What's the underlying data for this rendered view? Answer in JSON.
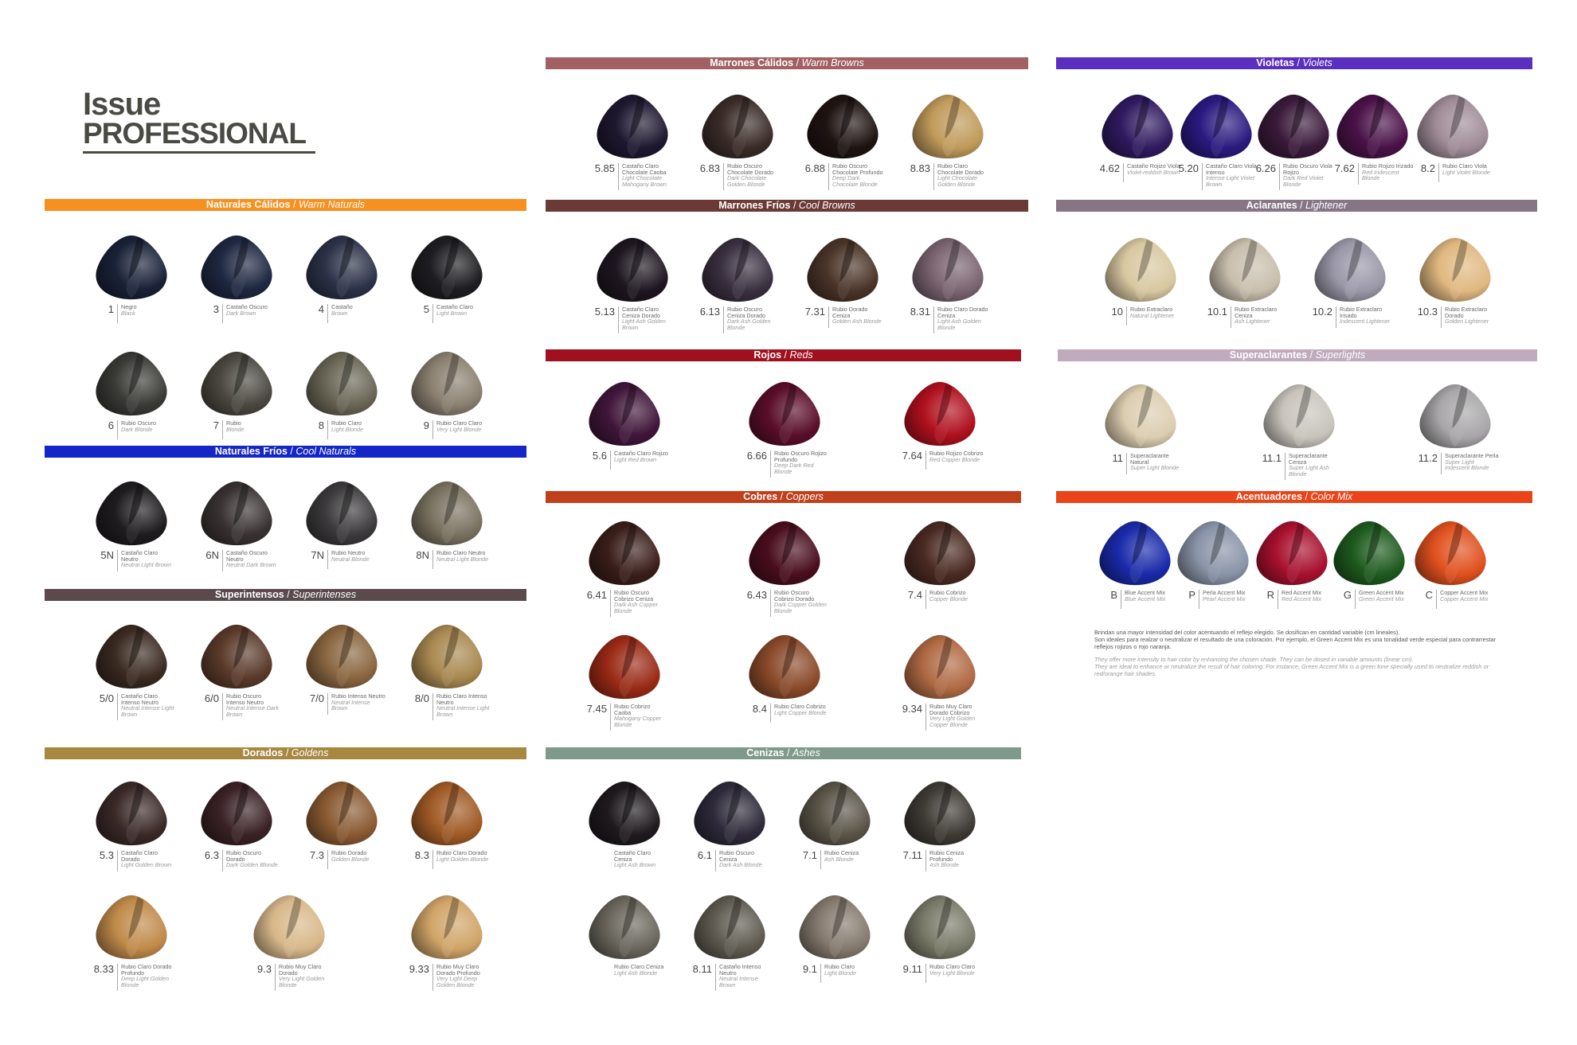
{
  "brand": {
    "line1": "ISSUe",
    "line2": "PROFESSIONAL"
  },
  "groups": [
    {
      "title_es": "Naturales Cálidos",
      "title_en": "Warm Naturals",
      "color": "#f7901e",
      "swatches": [
        {
          "code": "1",
          "es": "Negro",
          "en": "Black",
          "color": "#1a2238"
        },
        {
          "code": "3",
          "es": "Castaño Oscuro",
          "en": "Dark Brown",
          "color": "#1f2842"
        },
        {
          "code": "4",
          "es": "Castaño",
          "en": "Brown",
          "color": "#2c3248"
        },
        {
          "code": "5",
          "es": "Castaño Claro",
          "en": "Light Brown",
          "color": "#1e1e22"
        },
        {
          "code": "6",
          "es": "Rubio Oscuro",
          "en": "Dark Blonde",
          "color": "#3a3a36"
        },
        {
          "code": "7",
          "es": "Rubio",
          "en": "Blonde",
          "color": "#4a4840"
        },
        {
          "code": "8",
          "es": "Rubio Claro",
          "en": "Light Blonde",
          "color": "#6a6656"
        },
        {
          "code": "9",
          "es": "Rubio Claro Claro",
          "en": "Very Light Blonde",
          "color": "#8a8070"
        }
      ]
    },
    {
      "title_es": "Naturales Fríos",
      "title_en": "Cool Naturals",
      "color": "#1426c8",
      "swatches": [
        {
          "code": "5N",
          "es": "Castaño Claro Neutro",
          "en": "Neutral Light Brown",
          "color": "#1e1c1e"
        },
        {
          "code": "6N",
          "es": "Castaño Oscuro Neutro",
          "en": "Neutral Dark Brown",
          "color": "#3a3232"
        },
        {
          "code": "7N",
          "es": "Rubio Neutro",
          "en": "Neutral Blonde",
          "color": "#3c3a3c"
        },
        {
          "code": "8N",
          "es": "Rubio Claro Neutro",
          "en": "Neutral Light Blonde",
          "color": "#7a7260"
        }
      ]
    },
    {
      "title_es": "Superintensos",
      "title_en": "Superintenses",
      "color": "#5a4a4e",
      "swatches": [
        {
          "code": "5/0",
          "es": "Castaño Claro Intenso Neutro",
          "en": "Neutral Intense Light Brown",
          "color": "#3a2a22"
        },
        {
          "code": "6/0",
          "es": "Rubio Oscuro Intenso Neutro",
          "en": "Neutral Intense Dark Brown",
          "color": "#5a3a2a"
        },
        {
          "code": "7/0",
          "es": "Rubio Intenso Neutro",
          "en": "Neutral Intense Brown",
          "color": "#8a6640"
        },
        {
          "code": "8/0",
          "es": "Rubio Claro Intenso Neutro",
          "en": "Neutral Intense Light Brown",
          "color": "#a88850"
        }
      ]
    },
    {
      "title_es": "Dorados",
      "title_en": "Goldens",
      "color": "#a8873f",
      "swatches": [
        {
          "code": "5.3",
          "es": "Castaño Claro Dorado",
          "en": "Light Golden Brown",
          "color": "#3a2a28"
        },
        {
          "code": "6.3",
          "es": "Rubio Oscuro Dorado",
          "en": "Dark Golden Blonde",
          "color": "#3a2226"
        },
        {
          "code": "7.3",
          "es": "Rubio Dorado",
          "en": "Golden Blonde",
          "color": "#8a5a32"
        },
        {
          "code": "8.3",
          "es": "Rubio Claro Dorado",
          "en": "Light Golden Blonde",
          "color": "#a05a26"
        },
        {
          "code": "8.33",
          "es": "Rubio Claro Dorado Profundo",
          "en": "Deep Light Golden Blonde",
          "color": "#c08a4a"
        },
        {
          "code": "9.3",
          "es": "Rubio Muy Claro Dorado",
          "en": "Very Light Golden Blonde",
          "color": "#d8b88a"
        },
        {
          "code": "9.33",
          "es": "Rubio Muy Claro Dorado Profundo",
          "en": "Very Light Deep Golden Blonde",
          "color": "#d0a468"
        }
      ]
    },
    {
      "title_es": "Marrones Cálidos",
      "title_en": "Warm Browns",
      "color": "#a36062",
      "swatches": [
        {
          "code": "5.85",
          "es": "Castaño Claro Chocolate Caoba",
          "en": "Light Chocolate Mahogany Brown",
          "color": "#1e1830"
        },
        {
          "code": "6.83",
          "es": "Rubio Oscuro Chocolate Dorado",
          "en": "Dark Chocolate Golden Blonde",
          "color": "#3a2c28"
        },
        {
          "code": "6.88",
          "es": "Rubio Oscuro Chocolate Profundo",
          "en": "Deep Dark Chocolate Blonde",
          "color": "#1e1412"
        },
        {
          "code": "8.83",
          "es": "Rubio Claro Chocolate Dorado",
          "en": "Light Chocolate Golden Blonde",
          "color": "#c09a5a"
        }
      ]
    },
    {
      "title_es": "Marrones Fríos",
      "title_en": "Cool Browns",
      "color": "#6b3a37",
      "swatches": [
        {
          "code": "5.13",
          "es": "Castaño Claro Ceniza Dorado",
          "en": "Light Ash Golden Brown",
          "color": "#1e1620"
        },
        {
          "code": "6.13",
          "es": "Rubio Oscuro Ceniza Dorado",
          "en": "Dark Ash Golden Blonde",
          "color": "#3a3040"
        },
        {
          "code": "7.31",
          "es": "Rubio Dorado Ceniza",
          "en": "Golden Ash Blonde",
          "color": "#4a3428"
        },
        {
          "code": "8.31",
          "es": "Rubio Claro Dorado Ceniza",
          "en": "Light Ash Golden Blonde",
          "color": "#7a6470"
        }
      ]
    },
    {
      "title_es": "Rojos",
      "title_en": "Reds",
      "color": "#a0101e",
      "swatches": [
        {
          "code": "5.6",
          "es": "Castaño Claro Rojizo",
          "en": "Light Red Brown",
          "color": "#40163a"
        },
        {
          "code": "6.66",
          "es": "Rubio Oscuro Rojizo Profundo",
          "en": "Deep Dark Red Blonde",
          "color": "#5a0e2a"
        },
        {
          "code": "7.64",
          "es": "Rubio Rojizo Cobrizo",
          "en": "Red Copper Blonde",
          "color": "#b0101e"
        }
      ]
    },
    {
      "title_es": "Cobres",
      "title_en": "Coppers",
      "color": "#c0401c",
      "swatches": [
        {
          "code": "6.41",
          "es": "Rubio Oscuro Cobrizo Ceniza",
          "en": "Dark Ash Copper Blonde",
          "color": "#3a1e1a"
        },
        {
          "code": "6.43",
          "es": "Rubio Oscuro Cobrizo Dorado",
          "en": "Dark Copper Golden Blonde",
          "color": "#4a0e1e"
        },
        {
          "code": "7.4",
          "es": "Rubio Cobrizo",
          "en": "Copper Blonde",
          "color": "#4a2a22"
        },
        {
          "code": "7.45",
          "es": "Rubio Cobrizo Caoba",
          "en": "Mahogany Copper Blonde",
          "color": "#9a2a16"
        },
        {
          "code": "8.4",
          "es": "Rubio Claro Cobrizo",
          "en": "Light Copper Blonde",
          "color": "#8a4a2a"
        },
        {
          "code": "9.34",
          "es": "Rubio Muy Claro Dorado Cobrizo",
          "en": "Very Light Golden Copper Blonde",
          "color": "#b06a44"
        }
      ]
    },
    {
      "title_es": "Cenizas",
      "title_en": "Ashes",
      "color": "#7f9a8c",
      "swatches": [
        {
          "code": "",
          "es": "Castaño Claro Ceniza",
          "en": "Light Ash Brown",
          "color": "#1e1a1e"
        },
        {
          "code": "6.1",
          "es": "Rubio Oscuro Ceniza",
          "en": "Dark Ash Blonde",
          "color": "#2e2a3a"
        },
        {
          "code": "7.1",
          "es": "Rubio Ceniza",
          "en": "Ash Blonde",
          "color": "#5a5448"
        },
        {
          "code": "7.11",
          "es": "Rubio Ceniza Profundo",
          "en": "Ash Blonde",
          "color": "#3e3a34"
        },
        {
          "code": "",
          "es": "Rubio Claro Ceniza",
          "en": "Light Ash Blonde",
          "color": "#6a665c"
        },
        {
          "code": "8.11",
          "es": "Castaño Intenso Neutro",
          "en": "Neutral Intense Brown",
          "color": "#5e5a50"
        },
        {
          "code": "9.1",
          "es": "Rubio Claro",
          "en": "Light Blonde",
          "color": "#857a6e"
        },
        {
          "code": "9.11",
          "es": "Rubio Claro Claro",
          "en": "Very Light Blonde",
          "color": "#7a7a6a"
        }
      ]
    },
    {
      "title_es": "Violetas",
      "title_en": "Violets",
      "color": "#5a2fc0",
      "swatches": [
        {
          "code": "4.62",
          "es": "Castaño Rojizo Viola",
          "en": "Violet-reddish Brown",
          "color": "#301a60"
        },
        {
          "code": "5.20",
          "es": "Castaño Claro Viola Intenso",
          "en": "Intense Light Violet Brown",
          "color": "#2a1a80"
        },
        {
          "code": "6.26",
          "es": "Rubio Oscuro Viola Rojizo",
          "en": "Dark Red Violet Blonde",
          "color": "#3a1a3a"
        },
        {
          "code": "7.62",
          "es": "Rubio Rojizo Irizado",
          "en": "Red Indescent Blonde",
          "color": "#4a1248"
        },
        {
          "code": "8.2",
          "es": "Rubio Claro Viola",
          "en": "Light Violet Blonde",
          "color": "#a08c98"
        }
      ]
    },
    {
      "title_es": "Aclarantes",
      "title_en": "Lightener",
      "color": "#857585",
      "swatches": [
        {
          "code": "10",
          "es": "Rubio Extraclaro",
          "en": "Natural Lightener",
          "color": "#d8c8a0"
        },
        {
          "code": "10.1",
          "es": "Rubio Extraclaro Ceniza",
          "en": "Ash Lightener",
          "color": "#c8beac"
        },
        {
          "code": "10.2",
          "es": "Rubio Extraclaro Irisado",
          "en": "Indescent Lightener",
          "color": "#9a98a8"
        },
        {
          "code": "10.3",
          "es": "Rubio Extraclaro Dorado",
          "en": "Golden Lightener",
          "color": "#e0b880"
        }
      ]
    },
    {
      "title_es": "Superaclarantes",
      "title_en": "Superlights",
      "color": "#bfaabe",
      "swatches": [
        {
          "code": "11",
          "es": "Superaclarante Natural",
          "en": "Super Light Blonde",
          "color": "#dccdb0"
        },
        {
          "code": "11.1",
          "es": "Superaclarante Ceniza",
          "en": "Super Light Ash Blonde",
          "color": "#c8c4bc"
        },
        {
          "code": "11.2",
          "es": "Superaclarante Perla",
          "en": "Super Light Indescent Blonde",
          "color": "#a8a6a8"
        }
      ]
    },
    {
      "title_es": "Acentuadores",
      "title_en": "Color Mix",
      "color": "#ea4418",
      "swatches": [
        {
          "code": "B",
          "es": "Blue Accent Mix",
          "en": "Blue Accent Mix",
          "color": "#1a2aaa"
        },
        {
          "code": "P",
          "es": "Perla Accent Mix",
          "en": "Pearl Accent Mix",
          "color": "#8a94a8"
        },
        {
          "code": "R",
          "es": "Red Accent Mix",
          "en": "Red Accent Mix",
          "color": "#a8102e"
        },
        {
          "code": "G",
          "es": "Green Accent Mix",
          "en": "Green Accent Mix",
          "color": "#1e5a1e"
        },
        {
          "code": "C",
          "es": "Copper Accent Mix",
          "en": "Copper Accent Mix",
          "color": "#e0501e"
        }
      ]
    }
  ],
  "color_mix_note": {
    "es": [
      "Brindan una mayor intensidad del color acentuando el reflejo elegido. Se dosifican en cantidad variable (cm lineales).",
      "Son ideales para realzar o neutralizar el resultado de una coloración. Por ejemplo, el Green Accent Mix es una tonalidad verde especial para contrarrestar reflejos rojizos o rojo naranja."
    ],
    "en": [
      "They offer more intensity to hair color by enhancing the chosen shade. They can be dosed in variable amounts (linear cm).",
      "They are ideal to enhance or neutralize the result of hair coloring. For instance, Green Accent Mix is a green tone specially used to neutralize reddish or red/orange hair  shades."
    ]
  }
}
